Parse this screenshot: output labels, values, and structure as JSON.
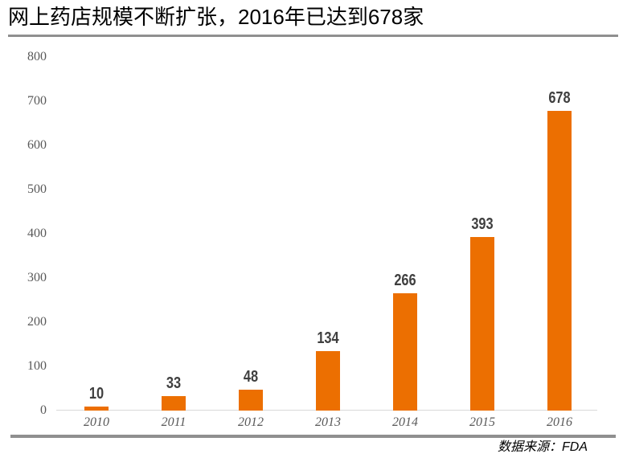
{
  "header": {
    "title": "网上药店规模不断扩张，2016年已达到678家"
  },
  "footer": {
    "source": "数据来源：FDA"
  },
  "chart_data": {
    "type": "bar",
    "title": "网上药店规模不断扩张，2016年已达到678家",
    "categories": [
      "2010",
      "2011",
      "2012",
      "2013",
      "2014",
      "2015",
      "2016"
    ],
    "values": [
      10,
      33,
      48,
      134,
      266,
      393,
      678
    ],
    "xlabel": "",
    "ylabel": "",
    "ylim": [
      0,
      800
    ],
    "ytick_interval": 100,
    "yticks": [
      0,
      100,
      200,
      300,
      400,
      500,
      600,
      700,
      800
    ],
    "grid": false,
    "legend_position": "none",
    "bar_color": "#ec6f01",
    "value_label_color": "#3f3f3f",
    "axis_label_color": "#595959",
    "rule_color": "#8f8f8f"
  }
}
